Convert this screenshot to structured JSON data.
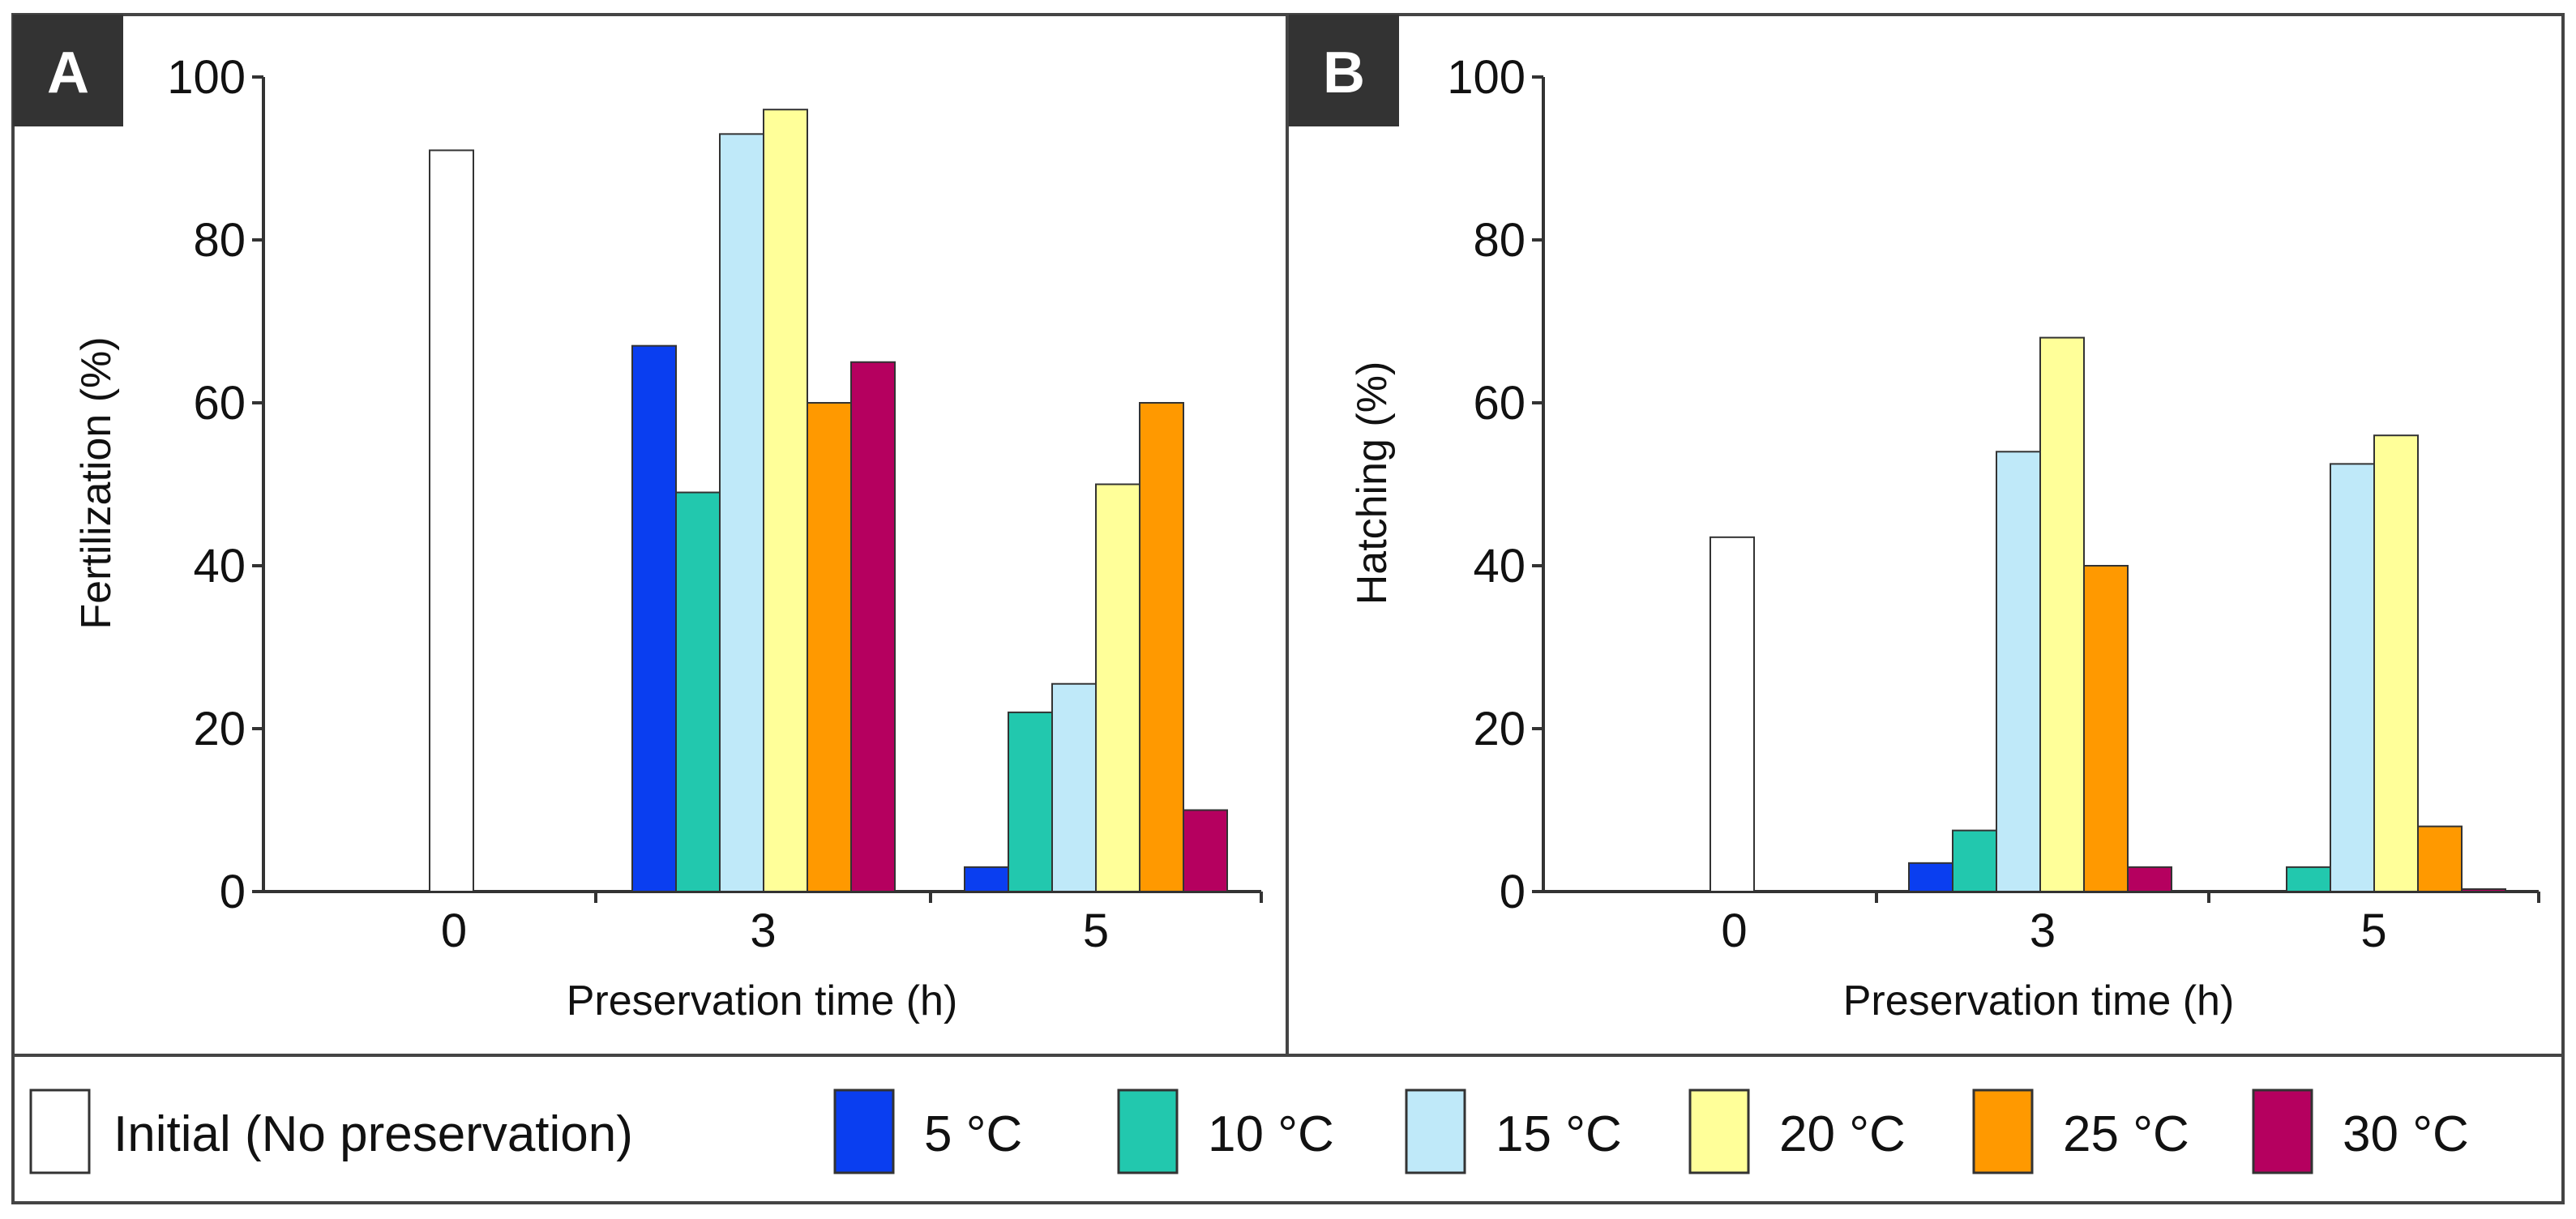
{
  "chart_data": [
    {
      "type": "bar",
      "panel": "A",
      "categories": [
        "0",
        "3",
        "5"
      ],
      "xlabel": "Preservation time (h)",
      "ylabel": "Fertilization (%)",
      "ylim": [
        0,
        100
      ],
      "yticks": [
        "0",
        "20",
        "40",
        "60",
        "80",
        "100"
      ],
      "grid": false,
      "series": [
        {
          "name": "Initial (No preservation)",
          "color": "#ffffff",
          "values": [
            91,
            null,
            null
          ]
        },
        {
          "name": "5 °C",
          "color": "#0a3ef0",
          "values": [
            null,
            67,
            3
          ]
        },
        {
          "name": "10 °C",
          "color": "#22c8ae",
          "values": [
            null,
            49,
            22
          ]
        },
        {
          "name": "15 °C",
          "color": "#bfe9f9",
          "values": [
            null,
            93,
            25.5
          ]
        },
        {
          "name": "20 °C",
          "color": "#ffff99",
          "values": [
            null,
            96,
            50
          ]
        },
        {
          "name": "25 °C",
          "color": "#ff9900",
          "values": [
            null,
            60,
            60
          ]
        },
        {
          "name": "30 °C",
          "color": "#b5005f",
          "values": [
            null,
            65,
            10
          ]
        }
      ]
    },
    {
      "type": "bar",
      "panel": "B",
      "categories": [
        "0",
        "3",
        "5"
      ],
      "xlabel": "Preservation time (h)",
      "ylabel": "Hatching (%)",
      "ylim": [
        0,
        100
      ],
      "yticks": [
        "0",
        "20",
        "40",
        "60",
        "80",
        "100"
      ],
      "grid": false,
      "series": [
        {
          "name": "Initial (No preservation)",
          "color": "#ffffff",
          "values": [
            43.5,
            null,
            null
          ]
        },
        {
          "name": "5 °C",
          "color": "#0a3ef0",
          "values": [
            null,
            3.5,
            0
          ]
        },
        {
          "name": "10 °C",
          "color": "#22c8ae",
          "values": [
            null,
            7.5,
            3
          ]
        },
        {
          "name": "15 °C",
          "color": "#bfe9f9",
          "values": [
            null,
            54,
            52.5
          ]
        },
        {
          "name": "20 °C",
          "color": "#ffff99",
          "values": [
            null,
            68,
            56
          ]
        },
        {
          "name": "25 °C",
          "color": "#ff9900",
          "values": [
            null,
            40,
            8
          ]
        },
        {
          "name": "30 °C",
          "color": "#b5005f",
          "values": [
            null,
            3,
            0.3
          ]
        }
      ]
    }
  ],
  "legend": {
    "placement": "bottom",
    "items": [
      {
        "label": "Initial (No preservation)",
        "color": "#ffffff"
      },
      {
        "label": "5 °C",
        "color": "#0a3ef0"
      },
      {
        "label": "10 °C",
        "color": "#22c8ae"
      },
      {
        "label": "15 °C",
        "color": "#bfe9f9"
      },
      {
        "label": "20 °C",
        "color": "#ffff99"
      },
      {
        "label": "25 °C",
        "color": "#ff9900"
      },
      {
        "label": "30 °C",
        "color": "#b5005f"
      }
    ]
  },
  "colors": {
    "frame": "#444444",
    "panel_tag_bg": "#333333",
    "bar_outline": "#333333"
  }
}
